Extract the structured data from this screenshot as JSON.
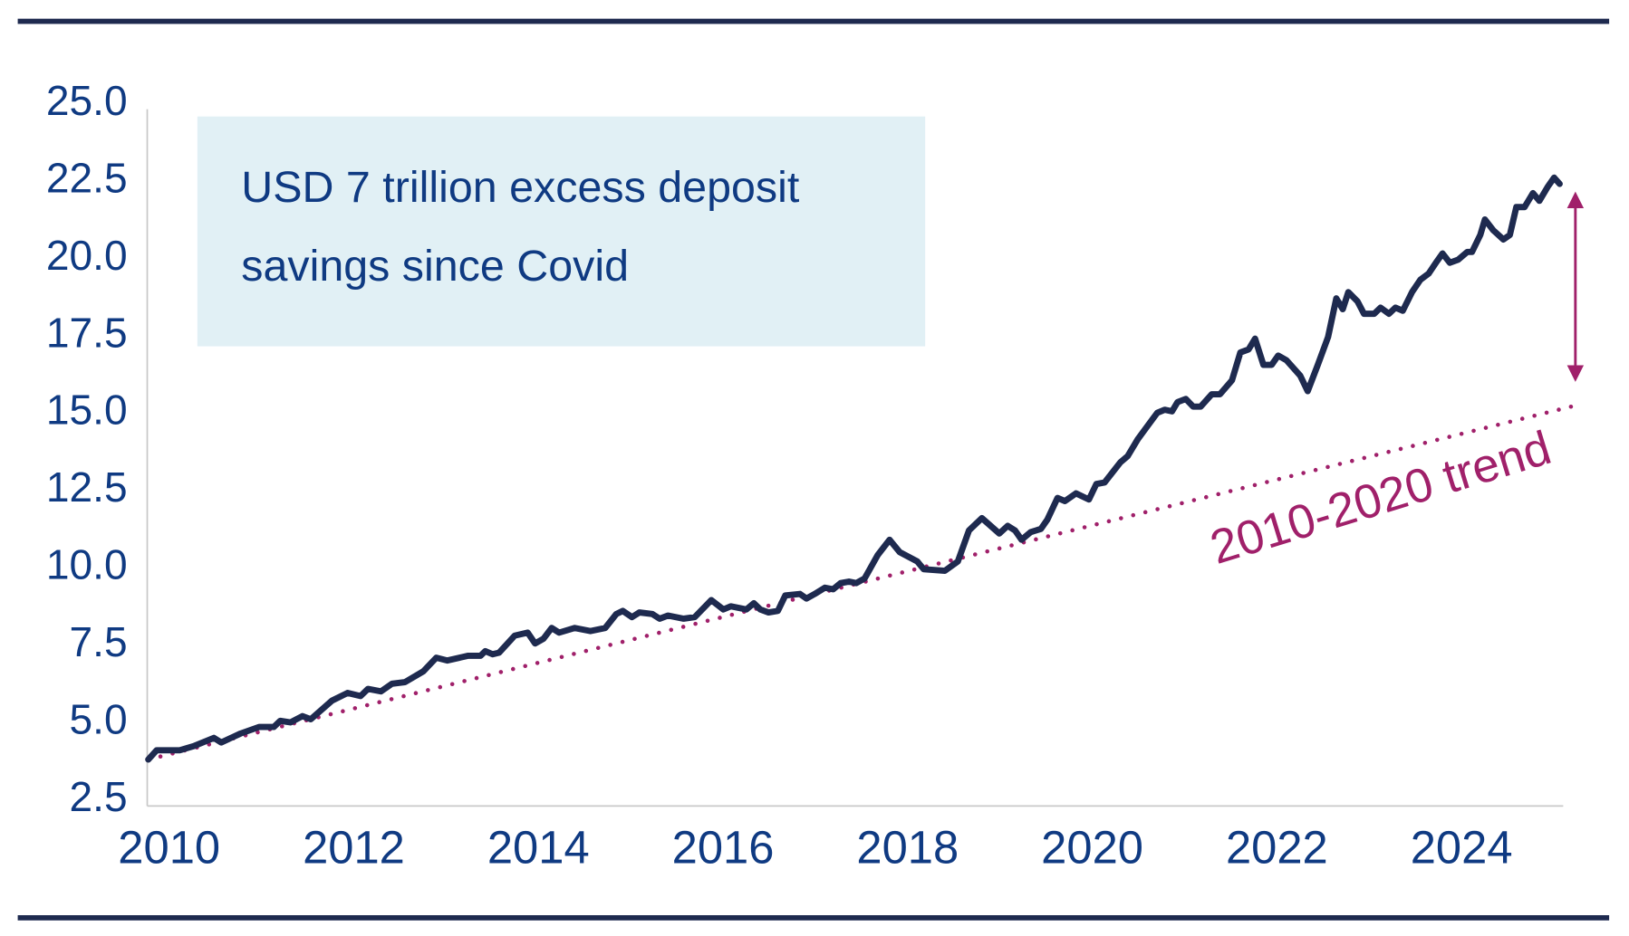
{
  "chart_data": {
    "type": "line",
    "title": "",
    "xlabel": "",
    "ylabel": "",
    "xlim": [
      2010,
      2025.33
    ],
    "ylim": [
      2.5,
      25.0
    ],
    "grid": false,
    "x_ticks": [
      "2010",
      "2012",
      "2014",
      "2016",
      "2018",
      "2020",
      "2022",
      "2024"
    ],
    "y_ticks": [
      "2.5",
      "5.0",
      "7.5",
      "10.0",
      "12.5",
      "15.0",
      "17.5",
      "20.0",
      "22.5",
      "25.0"
    ],
    "colors": {
      "series": "#1e2a4f",
      "trend": "#a0206a",
      "text": "#0f3a82",
      "note_box": "#e1f0f5",
      "frame": "#1e2a4f"
    },
    "annotation": {
      "line1": "USD 7 trillion excess deposit",
      "line2": "savings since Covid"
    },
    "series": [
      {
        "x": [
          2010.0,
          2010.09,
          2010.34,
          2010.49,
          2010.71,
          2010.79,
          2011.0,
          2011.2,
          2011.36,
          2011.43,
          2011.54,
          2011.67,
          2011.76,
          2011.99,
          2012.16,
          2012.3,
          2012.38,
          2012.52,
          2012.64,
          2012.78,
          2012.98,
          2013.12,
          2013.24,
          2013.46,
          2013.6,
          2013.65,
          2013.73,
          2013.8,
          2013.97,
          2014.11,
          2014.19,
          2014.28,
          2014.37,
          2014.45,
          2014.62,
          2014.79,
          2014.95,
          2015.07,
          2015.14,
          2015.24,
          2015.32,
          2015.46,
          2015.54,
          2015.63,
          2015.8,
          2015.92,
          2016.1,
          2016.23,
          2016.31,
          2016.48,
          2016.56,
          2016.63,
          2016.72,
          2016.82,
          2016.9,
          2017.06,
          2017.13,
          2017.22,
          2017.33,
          2017.42,
          2017.5,
          2017.59,
          2017.67,
          2017.76,
          2017.9,
          2018.03,
          2018.14,
          2018.33,
          2018.4,
          2018.63,
          2018.77,
          2018.89,
          2019.03,
          2019.22,
          2019.31,
          2019.39,
          2019.46,
          2019.56,
          2019.67,
          2019.74,
          2019.85,
          2019.93,
          2020.05,
          2020.19,
          2020.27,
          2020.36,
          2020.53,
          2020.61,
          2020.72,
          2020.93,
          2021.01,
          2021.09,
          2021.15,
          2021.24,
          2021.32,
          2021.4,
          2021.52,
          2021.61,
          2021.74,
          2021.83,
          2021.92,
          2021.99,
          2022.08,
          2022.17,
          2022.24,
          2022.33,
          2022.48,
          2022.56,
          2022.67,
          2022.78,
          2022.87,
          2022.94,
          2023.0,
          2023.1,
          2023.17,
          2023.28,
          2023.35,
          2023.44,
          2023.51,
          2023.59,
          2023.69,
          2023.78,
          2023.87,
          2023.96,
          2024.02,
          2024.1,
          2024.19,
          2024.29,
          2024.34,
          2024.43,
          2024.48,
          2024.57,
          2024.68,
          2024.75,
          2024.82,
          2024.91,
          2025.0,
          2025.07,
          2025.16,
          2025.23,
          2025.29
        ],
        "values": [
          3.7,
          4.0,
          4.0,
          4.13,
          4.4,
          4.25,
          4.54,
          4.75,
          4.75,
          4.95,
          4.9,
          5.1,
          5.0,
          5.6,
          5.85,
          5.75,
          5.98,
          5.9,
          6.15,
          6.2,
          6.55,
          6.99,
          6.9,
          7.05,
          7.05,
          7.2,
          7.1,
          7.15,
          7.7,
          7.8,
          7.45,
          7.6,
          7.95,
          7.8,
          7.95,
          7.85,
          7.95,
          8.4,
          8.5,
          8.3,
          8.45,
          8.4,
          8.25,
          8.35,
          8.25,
          8.3,
          8.85,
          8.55,
          8.65,
          8.55,
          8.75,
          8.55,
          8.45,
          8.5,
          9.0,
          9.05,
          8.9,
          9.05,
          9.25,
          9.2,
          9.4,
          9.45,
          9.4,
          9.55,
          10.3,
          10.8,
          10.4,
          10.1,
          9.85,
          9.8,
          10.1,
          11.1,
          11.5,
          11.0,
          11.25,
          11.1,
          10.8,
          11.05,
          11.15,
          11.45,
          12.15,
          12.05,
          12.3,
          12.1,
          12.6,
          12.65,
          13.3,
          13.5,
          14.05,
          14.9,
          15.0,
          14.95,
          15.25,
          15.35,
          15.1,
          15.1,
          15.5,
          15.5,
          15.95,
          16.85,
          16.95,
          17.3,
          16.45,
          16.45,
          16.75,
          16.6,
          16.1,
          15.6,
          16.45,
          17.35,
          18.6,
          18.25,
          18.8,
          18.5,
          18.1,
          18.1,
          18.3,
          18.1,
          18.3,
          18.2,
          18.8,
          19.2,
          19.4,
          19.8,
          20.05,
          19.75,
          19.85,
          20.1,
          20.1,
          20.65,
          21.15,
          20.8,
          20.5,
          20.65,
          21.55,
          21.55,
          22.0,
          21.75,
          22.2,
          22.5,
          22.3
        ]
      },
      {
        "name": "2010-2020 trend",
        "style": "dotted",
        "x": [
          2010.0,
          2025.48
        ],
        "values": [
          3.7,
          15.15
        ]
      }
    ],
    "gap_arrow": {
      "x": 2025.46,
      "from": 15.9,
      "to": 22.05
    }
  }
}
